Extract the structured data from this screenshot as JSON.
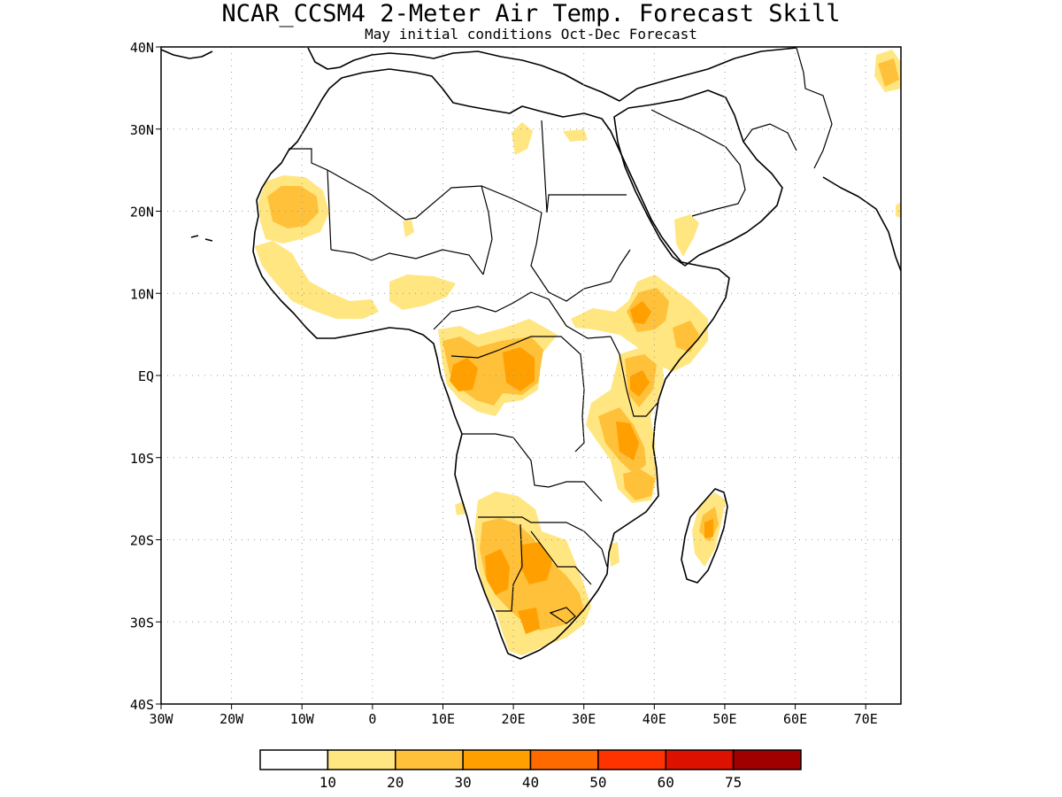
{
  "title": "NCAR_CCSM4 2-Meter Air Temp. Forecast Skill",
  "subtitle": "May initial conditions  Oct-Dec Forecast",
  "axes": {
    "lon_ticks": [
      "30W",
      "20W",
      "10W",
      "0",
      "10E",
      "20E",
      "30E",
      "40E",
      "50E",
      "60E",
      "70E"
    ],
    "lat_ticks": [
      "40N",
      "30N",
      "20N",
      "10N",
      "EQ",
      "10S",
      "20S",
      "30S",
      "40S"
    ],
    "lon_range": [
      -30,
      75
    ],
    "lat_range": [
      -40,
      40
    ]
  },
  "colorbar": {
    "labels": [
      "10",
      "20",
      "30",
      "40",
      "50",
      "60",
      "75"
    ],
    "colors": [
      "#ffffff",
      "#ffe680",
      "#ffc03a",
      "#ff9f00",
      "#ff6a00",
      "#ff3300",
      "#dd1100",
      "#a00000"
    ]
  },
  "skill_regions": [
    {
      "name": "west-sahel",
      "level": 2
    },
    {
      "name": "west-sahel-core",
      "level": 3
    },
    {
      "name": "guinea-coast",
      "level": 2
    },
    {
      "name": "nigeria",
      "level": 2
    },
    {
      "name": "central-africa",
      "level": 2
    },
    {
      "name": "central-africa-core",
      "level": 3
    },
    {
      "name": "ethiopia",
      "level": 2
    },
    {
      "name": "ethiopia-core",
      "level": 3
    },
    {
      "name": "east-africa",
      "level": 2
    },
    {
      "name": "east-africa-core",
      "level": 3
    },
    {
      "name": "southern-africa",
      "level": 2
    },
    {
      "name": "southern-africa-core",
      "level": 3
    },
    {
      "name": "madagascar",
      "level": 2
    },
    {
      "name": "madagascar-core",
      "level": 3
    }
  ]
}
